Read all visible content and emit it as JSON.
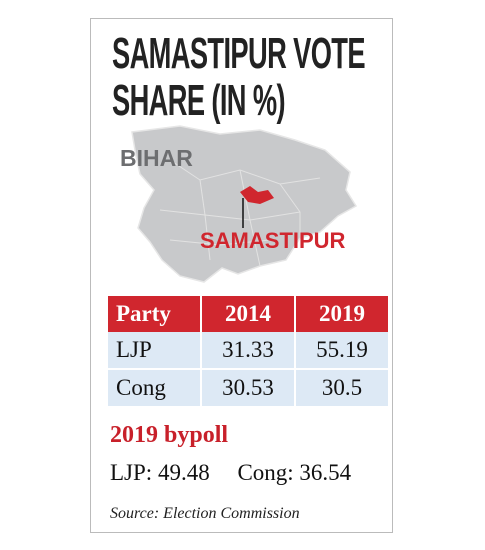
{
  "header": {
    "title_lines": [
      "SAMASTIPUR VOTE",
      "SHARE (IN %)"
    ]
  },
  "map": {
    "region_label": "BIHAR",
    "place_label": "SAMASTIPUR"
  },
  "table": {
    "columns": [
      "Party",
      "2014",
      "2019"
    ],
    "rows": [
      [
        "LJP",
        31.33,
        55.19
      ],
      [
        "Cong",
        30.53,
        30.5
      ]
    ]
  },
  "bypoll": {
    "heading": "2019 bypoll",
    "results": [
      {
        "party": "LJP:",
        "value": 49.48
      },
      {
        "party": "Cong:",
        "value": 36.54
      }
    ]
  },
  "source": "Source: Election Commission"
}
